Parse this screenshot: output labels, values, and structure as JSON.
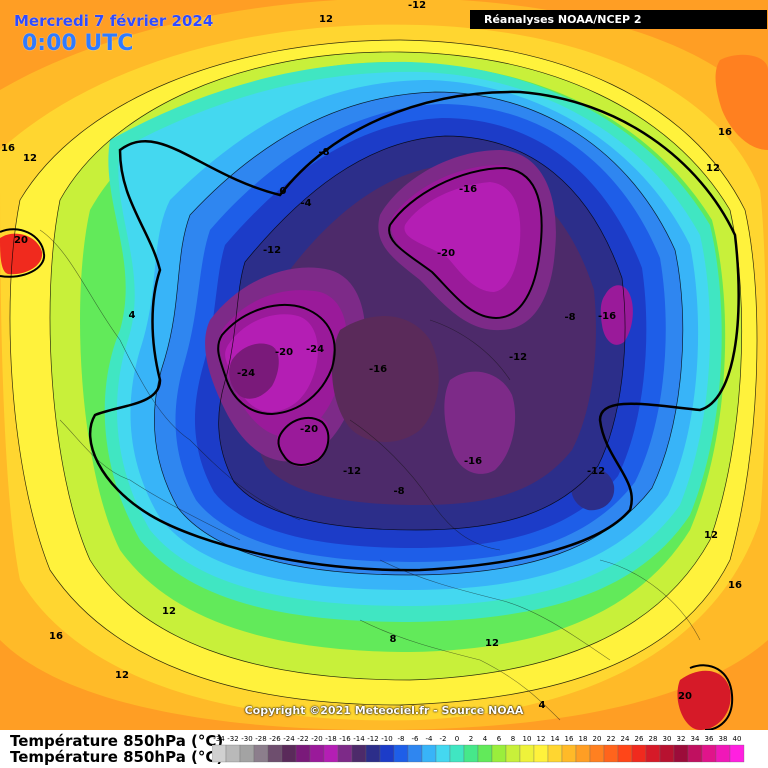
{
  "header": {
    "date": "Mercredi 7 février 2024",
    "time": "0:00 UTC",
    "source": "Réanalyses NOAA/NCEP 2"
  },
  "footer": {
    "copyright": "Copyright ©2021 Meteociel.fr - Source NOAA",
    "legend_title": "Température 850hPa (°C)"
  },
  "legend": {
    "ticks": [
      "-34",
      "-32",
      "-30",
      "-28",
      "-26",
      "-24",
      "-22",
      "-20",
      "-18",
      "-16",
      "-14",
      "-12",
      "-10",
      "-8",
      "-6",
      "-4",
      "-2",
      "0",
      "2",
      "4",
      "6",
      "8",
      "10",
      "12",
      "14",
      "16",
      "18",
      "20",
      "22",
      "24",
      "26",
      "28",
      "30",
      "32",
      "34",
      "36",
      "38",
      "40"
    ],
    "colors": [
      "#d0d0d0",
      "#b9b9b9",
      "#a3a3a3",
      "#8c7e8c",
      "#6e4e6e",
      "#5a2a5a",
      "#7a1a7a",
      "#9a1a9a",
      "#b41eb4",
      "#7d2a88",
      "#4d2a6a",
      "#2c2e8a",
      "#1c3cc8",
      "#1e5ee8",
      "#2f86f0",
      "#38b4f8",
      "#44d8f0",
      "#40e6c2",
      "#46e88a",
      "#62ea5a",
      "#9aee3c",
      "#c8f03a",
      "#eef23a",
      "#fff23c",
      "#ffd630",
      "#ffba28",
      "#ff9e24",
      "#ff8020",
      "#ff641c",
      "#ff4618",
      "#f02a1e",
      "#d61a28",
      "#b81230",
      "#9c0c3a",
      "#c01060",
      "#e0148a",
      "#f018b8",
      "#ff20e0"
    ]
  },
  "contour_labels": [
    {
      "text": "12"
    },
    {
      "text": "-12"
    },
    {
      "text": "16"
    },
    {
      "text": "12"
    },
    {
      "text": "-8"
    },
    {
      "text": "0"
    },
    {
      "text": "-4"
    },
    {
      "text": "-16"
    },
    {
      "text": "16"
    },
    {
      "text": "12"
    },
    {
      "text": "20"
    },
    {
      "text": "-12"
    },
    {
      "text": "-20"
    },
    {
      "text": "4"
    },
    {
      "text": "-8"
    },
    {
      "text": "-16"
    },
    {
      "text": "-20"
    },
    {
      "text": "-24"
    },
    {
      "text": "-12"
    },
    {
      "text": "-24"
    },
    {
      "text": "-16"
    },
    {
      "text": "-20"
    },
    {
      "text": "-12"
    },
    {
      "text": "-16"
    },
    {
      "text": "-8"
    },
    {
      "text": "-12"
    },
    {
      "text": "12"
    },
    {
      "text": "16"
    },
    {
      "text": "12"
    },
    {
      "text": "16"
    },
    {
      "text": "8"
    },
    {
      "text": "12"
    },
    {
      "text": "12"
    },
    {
      "text": "4"
    },
    {
      "text": "20"
    }
  ]
}
